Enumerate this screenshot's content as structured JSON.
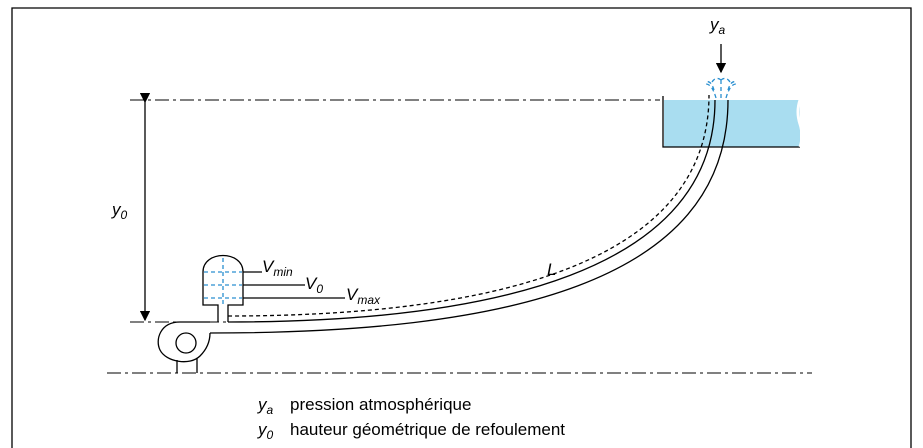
{
  "labels": {
    "top_symbol": {
      "main": "y",
      "sub": "a"
    },
    "height": {
      "main": "y",
      "sub": "0"
    },
    "v_min": {
      "main": "V",
      "sub": "min"
    },
    "v_0": {
      "main": "V",
      "sub": "0"
    },
    "v_max": {
      "main": "V",
      "sub": "max"
    },
    "length": "L"
  },
  "legend": [
    {
      "symbol": {
        "main": "y",
        "sub": "a"
      },
      "text": "pression atmosphérique"
    },
    {
      "symbol": {
        "main": "y",
        "sub": "0"
      },
      "text": "hauteur géométrique de refoulement"
    }
  ]
}
